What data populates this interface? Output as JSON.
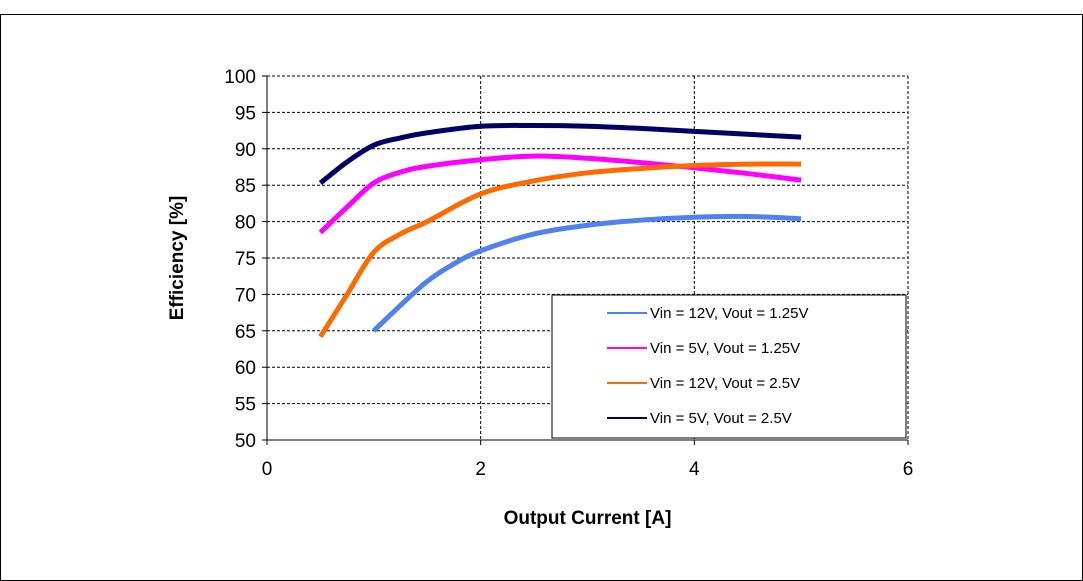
{
  "chart_data": {
    "type": "line",
    "title": "",
    "xlabel": "Output Current [A]",
    "ylabel": "Efficiency [%]",
    "xlim": [
      0,
      6
    ],
    "ylim": [
      50,
      100
    ],
    "xticks": [
      0,
      2,
      4,
      6
    ],
    "yticks": [
      50,
      55,
      60,
      65,
      70,
      75,
      80,
      85,
      90,
      95,
      100
    ],
    "grid": "dashed",
    "legend_position": "bottom-right",
    "series": [
      {
        "name": "Vin = 12V, Vout = 1.25V",
        "color": "#4f81f0",
        "x": [
          1.0,
          1.25,
          1.5,
          1.75,
          2.0,
          2.5,
          3.0,
          3.5,
          4.0,
          4.5,
          5.0
        ],
        "y": [
          65.0,
          68.5,
          71.8,
          74.2,
          76.0,
          78.3,
          79.5,
          80.2,
          80.6,
          80.7,
          80.4
        ]
      },
      {
        "name": "Vin = 5V, Vout = 1.25V",
        "color": "#ff00ff",
        "x": [
          0.5,
          0.75,
          1.0,
          1.25,
          1.5,
          2.0,
          2.5,
          3.0,
          3.5,
          4.0,
          4.5,
          5.0
        ],
        "y": [
          78.5,
          82.0,
          85.3,
          86.8,
          87.6,
          88.5,
          89.0,
          88.7,
          88.1,
          87.4,
          86.6,
          85.7
        ]
      },
      {
        "name": "Vin = 12V, Vout = 2.5V",
        "color": "#ff6a00",
        "x": [
          0.5,
          0.75,
          1.0,
          1.25,
          1.5,
          2.0,
          2.5,
          3.0,
          3.5,
          4.0,
          4.5,
          5.0
        ],
        "y": [
          64.2,
          70.0,
          75.8,
          78.3,
          80.0,
          83.8,
          85.6,
          86.7,
          87.3,
          87.7,
          87.9,
          87.9
        ]
      },
      {
        "name": "Vin = 5V, Vout = 2.5V",
        "color": "#000066",
        "x": [
          0.5,
          0.75,
          1.0,
          1.25,
          1.5,
          2.0,
          2.5,
          3.0,
          3.5,
          4.0,
          4.5,
          5.0
        ],
        "y": [
          85.3,
          88.2,
          90.5,
          91.5,
          92.2,
          93.1,
          93.2,
          93.1,
          92.8,
          92.4,
          92.0,
          91.6
        ]
      }
    ]
  }
}
